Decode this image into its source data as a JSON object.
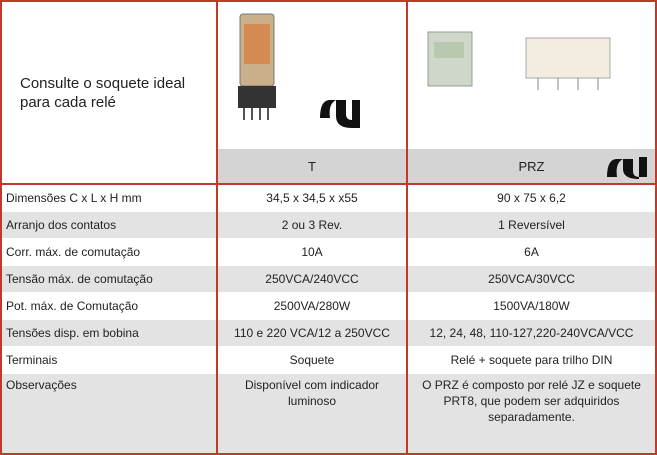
{
  "header": {
    "title": "Consulte o soquete ideal para cada relé",
    "columns": [
      "T",
      "PRZ"
    ]
  },
  "table": {
    "rows": [
      [
        "Dimensões C x L x H mm",
        "34,5 x 34,5 x x55",
        "90 x 75 x 6,2"
      ],
      [
        "Arranjo dos contatos",
        "2 ou 3 Rev.",
        "1 Reversível"
      ],
      [
        "Corr. máx. de comutação",
        "10A",
        "6A"
      ],
      [
        "Tensão máx. de comutação",
        "250VCA/240VCC",
        "250VCA/30VCC"
      ],
      [
        "Pot. máx. de Comutação",
        "2500VA/280W",
        "1500VA/180W"
      ],
      [
        "Tensões disp. em bobina",
        "110 e 220 VCA/12 a 250VCC",
        "12, 24, 48, 110-127,220-240VCA/VCC"
      ],
      [
        "Terminais",
        "Soquete",
        "Relé + soquete para trilho DIN"
      ],
      [
        "Observações",
        "Disponível com indicador luminoso",
        "O PRZ é composto por relé JZ e soquete PRT8, que podem ser adquiridos separadamente."
      ]
    ]
  }
}
